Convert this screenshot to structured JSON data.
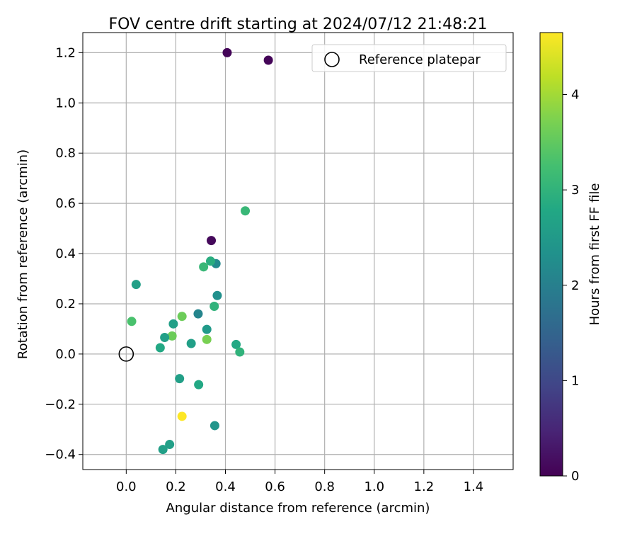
{
  "chart_data": {
    "type": "scatter",
    "title": "FOV centre drift starting at 2024/07/12 21:48:21",
    "xlabel": "Angular distance from reference (arcmin)",
    "ylabel": "Rotation from reference (arcmin)",
    "xlim": [
      -0.175,
      1.56
    ],
    "ylim": [
      -0.46,
      1.28
    ],
    "x_ticks": [
      0.0,
      0.2,
      0.4,
      0.6,
      0.8,
      1.0,
      1.2,
      1.4
    ],
    "x_tick_labels": [
      "0.0",
      "0.2",
      "0.4",
      "0.6",
      "0.8",
      "1.0",
      "1.2",
      "1.4"
    ],
    "y_ticks": [
      -0.4,
      -0.2,
      0.0,
      0.2,
      0.4,
      0.6,
      0.8,
      1.0,
      1.2
    ],
    "y_tick_labels": [
      "−0.4",
      "−0.2",
      "0.0",
      "0.2",
      "0.4",
      "0.6",
      "0.8",
      "1.0",
      "1.2"
    ],
    "grid": true,
    "legend": {
      "position": "top-right",
      "entries": [
        "Reference platepar"
      ]
    },
    "reference_point": {
      "name": "Reference platepar",
      "x": 0.0,
      "y": 0.0
    },
    "colorbar": {
      "label": "Hours from first FF file",
      "range": [
        0,
        4.65
      ],
      "ticks": [
        0,
        1,
        2,
        3,
        4
      ],
      "tick_labels": [
        "0",
        "1",
        "2",
        "3",
        "4"
      ],
      "colormap": "viridis"
    },
    "points": [
      {
        "x": 0.407,
        "y": 1.2,
        "c": 0.05
      },
      {
        "x": 0.573,
        "y": 1.17,
        "c": 0.05
      },
      {
        "x": 0.343,
        "y": 0.452,
        "c": 0.1
      },
      {
        "x": 0.48,
        "y": 0.57,
        "c": 3.1
      },
      {
        "x": 0.362,
        "y": 0.36,
        "c": 2.2
      },
      {
        "x": 0.34,
        "y": 0.37,
        "c": 2.9
      },
      {
        "x": 0.312,
        "y": 0.347,
        "c": 3.1
      },
      {
        "x": 0.04,
        "y": 0.277,
        "c": 2.6
      },
      {
        "x": 0.367,
        "y": 0.233,
        "c": 2.3
      },
      {
        "x": 0.355,
        "y": 0.19,
        "c": 3.0
      },
      {
        "x": 0.29,
        "y": 0.16,
        "c": 2.1
      },
      {
        "x": 0.225,
        "y": 0.15,
        "c": 3.6
      },
      {
        "x": 0.022,
        "y": 0.13,
        "c": 3.3
      },
      {
        "x": 0.19,
        "y": 0.12,
        "c": 2.6
      },
      {
        "x": 0.325,
        "y": 0.098,
        "c": 2.5
      },
      {
        "x": 0.185,
        "y": 0.072,
        "c": 3.6
      },
      {
        "x": 0.155,
        "y": 0.066,
        "c": 2.6
      },
      {
        "x": 0.325,
        "y": 0.058,
        "c": 3.7
      },
      {
        "x": 0.262,
        "y": 0.042,
        "c": 2.6
      },
      {
        "x": 0.443,
        "y": 0.038,
        "c": 2.8
      },
      {
        "x": 0.137,
        "y": 0.025,
        "c": 2.8
      },
      {
        "x": 0.458,
        "y": 0.008,
        "c": 3.0
      },
      {
        "x": 0.215,
        "y": -0.098,
        "c": 2.6
      },
      {
        "x": 0.292,
        "y": -0.122,
        "c": 2.8
      },
      {
        "x": 0.225,
        "y": -0.248,
        "c": 4.65
      },
      {
        "x": 0.357,
        "y": -0.285,
        "c": 2.4
      },
      {
        "x": 0.175,
        "y": -0.36,
        "c": 2.6
      },
      {
        "x": 0.148,
        "y": -0.38,
        "c": 2.6
      }
    ]
  }
}
